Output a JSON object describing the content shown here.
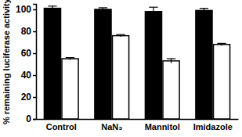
{
  "chart_data": {
    "type": "bar",
    "y_label": "% remaining luciferase activity",
    "categories": [
      "Control",
      "NaN₃",
      "Mannitol",
      "Imidazole"
    ],
    "series": [
      {
        "color": "#000000",
        "values": [
          101,
          100,
          98,
          99
        ],
        "errors": [
          2,
          1.5,
          4,
          2
        ]
      },
      {
        "color": "#ffffff",
        "values": [
          55,
          76,
          53,
          68
        ],
        "errors": [
          1,
          1,
          2,
          1
        ]
      }
    ],
    "ylim": [
      0,
      105
    ],
    "yticks": [
      0,
      20,
      40,
      60,
      80,
      100
    ],
    "grid": false
  }
}
